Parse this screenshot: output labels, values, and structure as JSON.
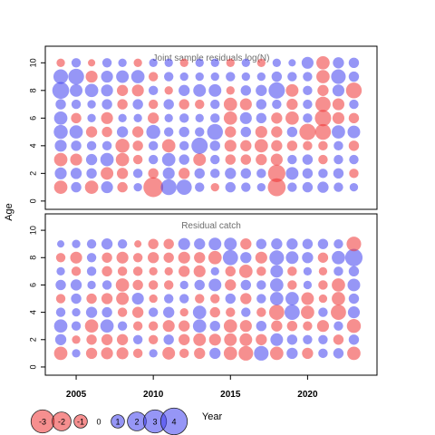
{
  "figure": {
    "ylabel": "Age",
    "xlabel": "Year"
  },
  "colors": {
    "positive": "#4040ee",
    "negative": "#ee3333",
    "text_gray": "#6e6e6e",
    "axis": "#000000"
  },
  "legend": {
    "labels": [
      "-3",
      "-2",
      "-1",
      "0",
      "1",
      "2",
      "3",
      "4"
    ],
    "values": [
      -3,
      -2,
      -1,
      0,
      1,
      2,
      3,
      4
    ]
  },
  "chart_data": [
    {
      "type": "scatter",
      "subtype": "bubble",
      "title": "Joint sample residuals log(N)",
      "xlim": [
        2003,
        2024.5
      ],
      "ylim": [
        -0.6,
        11.2
      ],
      "x_ticks": [],
      "y_ticks": [
        0,
        2,
        4,
        6,
        8,
        10
      ],
      "y_tick_labels": [
        "0",
        "2",
        "4",
        "6",
        "8",
        "10"
      ],
      "x": [
        2004,
        2005,
        2006,
        2007,
        2008,
        2009,
        2010,
        2011,
        2012,
        2013,
        2014,
        2015,
        2016,
        2017,
        2018,
        2019,
        2020,
        2021,
        2022,
        2023
      ],
      "ages": [
        1,
        2,
        3,
        4,
        5,
        6,
        7,
        8,
        9,
        10
      ],
      "residuals": [
        [
          -1.0,
          0.6,
          -1.0,
          0.8,
          -0.6,
          0.4,
          -2.2,
          1.4,
          1.3,
          0.5,
          -0.4,
          0.6,
          0.5,
          0.4,
          -1.8,
          0.5,
          0.6,
          0.7,
          0.5,
          0.4
        ],
        [
          0.8,
          0.7,
          0.6,
          -0.9,
          -0.7,
          0.5,
          -0.6,
          0.8,
          -0.7,
          0.6,
          0.5,
          0.7,
          0.6,
          0.5,
          -1.7,
          0.9,
          0.6,
          0.5,
          0.6,
          -0.5
        ],
        [
          -1.0,
          -0.8,
          0.7,
          1.0,
          -1.0,
          -0.5,
          0.5,
          1.0,
          0.6,
          -0.9,
          0.5,
          -0.6,
          -0.6,
          -0.7,
          -0.8,
          0.5,
          0.6,
          -0.5,
          0.5,
          0.5
        ],
        [
          0.8,
          0.6,
          0.5,
          0.5,
          -1.1,
          -0.6,
          0.5,
          -1.0,
          0.5,
          1.5,
          0.6,
          -0.8,
          -0.7,
          -1.0,
          -0.7,
          -0.6,
          -0.5,
          -0.5,
          0.5,
          -0.6
        ],
        [
          1.1,
          1.0,
          -0.7,
          -0.6,
          0.7,
          -0.7,
          1.1,
          0.5,
          0.6,
          0.5,
          1.4,
          -0.7,
          0.6,
          -0.8,
          -0.7,
          0.6,
          -1.5,
          -1.4,
          1.0,
          0.9
        ],
        [
          1.0,
          -0.6,
          0.4,
          -0.8,
          0.4,
          0.4,
          -0.7,
          0.4,
          0.5,
          0.4,
          0.5,
          -1.0,
          0.8,
          0.6,
          -0.7,
          -1.0,
          0.5,
          -1.5,
          -0.8,
          -0.6
        ],
        [
          0.6,
          0.5,
          0.4,
          0.6,
          -0.6,
          0.6,
          -0.5,
          0.6,
          -0.6,
          -0.5,
          0.5,
          -1.0,
          -0.8,
          0.6,
          0.5,
          -0.7,
          0.5,
          -1.3,
          -0.8,
          0.5
        ],
        [
          1.6,
          0.9,
          1.0,
          0.8,
          -0.7,
          -0.8,
          0.5,
          -0.4,
          0.7,
          0.9,
          0.9,
          -0.4,
          0.6,
          0.7,
          1.5,
          -0.9,
          0.5,
          -0.7,
          0.8,
          -1.4
        ],
        [
          1.2,
          1.4,
          -0.8,
          0.8,
          0.9,
          1.0,
          -0.5,
          0.5,
          0.4,
          0.4,
          0.4,
          0.5,
          0.4,
          0.4,
          0.6,
          0.5,
          0.5,
          -1.0,
          1.2,
          0.6
        ],
        [
          -0.4,
          0.5,
          -0.3,
          0.5,
          0.4,
          -0.4,
          0.4,
          0.4,
          -0.4,
          0.4,
          0.4,
          -0.4,
          0.4,
          -0.4,
          0.4,
          0.3,
          0.8,
          -1.0,
          0.7,
          0.6
        ]
      ]
    },
    {
      "type": "scatter",
      "subtype": "bubble",
      "title": "Residual catch",
      "xlim": [
        2003,
        2024.5
      ],
      "ylim": [
        -0.6,
        11.2
      ],
      "x_ticks": [
        2005,
        2010,
        2015,
        2020
      ],
      "x_tick_labels": [
        "2005",
        "2010",
        "2015",
        "2020"
      ],
      "y_ticks": [
        0,
        2,
        4,
        6,
        8,
        10
      ],
      "y_tick_labels": [
        "0",
        "2",
        "4",
        "6",
        "8",
        "10"
      ],
      "x": [
        2004,
        2005,
        2006,
        2007,
        2008,
        2009,
        2010,
        2011,
        2012,
        2013,
        2014,
        2015,
        2016,
        2017,
        2018,
        2019,
        2020,
        2021,
        2022,
        2023
      ],
      "ages": [
        1,
        2,
        3,
        4,
        5,
        6,
        7,
        8,
        9
      ],
      "residuals": [
        [
          -1.0,
          0.4,
          -0.7,
          -0.8,
          -0.8,
          -0.5,
          0.4,
          -0.9,
          -0.5,
          -0.7,
          0.7,
          -1.0,
          -1.2,
          1.2,
          -1.0,
          0.7,
          -0.7,
          0.5,
          0.6,
          -1.0
        ],
        [
          0.7,
          -0.4,
          -0.6,
          -0.7,
          -0.7,
          0.5,
          -0.5,
          0.6,
          -0.7,
          -0.9,
          -0.8,
          -0.9,
          -0.9,
          -0.7,
          0.9,
          0.6,
          0.5,
          0.5,
          -0.6,
          0.6
        ],
        [
          1.0,
          0.5,
          -1.0,
          1.0,
          0.5,
          -0.5,
          -0.5,
          -0.8,
          -0.7,
          1.0,
          0.6,
          -1.0,
          -0.8,
          0.6,
          -0.7,
          -0.6,
          -0.5,
          -0.8,
          0.5,
          -1.1
        ],
        [
          0.5,
          0.4,
          0.7,
          0.6,
          -0.5,
          -0.7,
          0.5,
          0.7,
          -0.4,
          1.0,
          -0.6,
          -0.5,
          0.5,
          -0.5,
          -1.3,
          1.3,
          -1.0,
          0.5,
          -1.3,
          0.8
        ],
        [
          -0.5,
          0.6,
          -0.6,
          -0.7,
          -0.9,
          0.8,
          -0.4,
          0.5,
          0.5,
          -0.5,
          -0.5,
          0.6,
          -0.7,
          0.5,
          1.0,
          1.0,
          -0.9,
          -0.4,
          -1.0,
          0.6
        ],
        [
          0.6,
          0.7,
          0.4,
          0.5,
          -1.0,
          -0.6,
          -0.5,
          -0.5,
          0.4,
          0.6,
          0.9,
          -0.7,
          0.6,
          0.5,
          1.0,
          -0.5,
          0.4,
          -0.5,
          -1.0,
          0.9
        ],
        [
          0.4,
          -0.5,
          0.5,
          -0.6,
          -0.5,
          -0.5,
          -0.4,
          -0.4,
          -0.7,
          -0.8,
          0.4,
          -0.6,
          -1.0,
          -0.5,
          0.9,
          -0.5,
          0.4,
          -0.4,
          0.5,
          0.6
        ],
        [
          -0.5,
          -0.8,
          0.5,
          -0.6,
          -0.8,
          -0.5,
          -0.7,
          -0.6,
          -0.8,
          -0.7,
          -1.0,
          1.3,
          0.7,
          -0.8,
          1.2,
          0.9,
          0.7,
          -0.6,
          1.0,
          1.7
        ],
        [
          0.3,
          0.4,
          0.5,
          0.7,
          0.5,
          -0.3,
          -0.6,
          -0.6,
          0.8,
          0.7,
          0.9,
          0.9,
          -0.7,
          0.6,
          0.7,
          0.7,
          0.6,
          0.6,
          0.5,
          -1.2
        ]
      ]
    }
  ]
}
